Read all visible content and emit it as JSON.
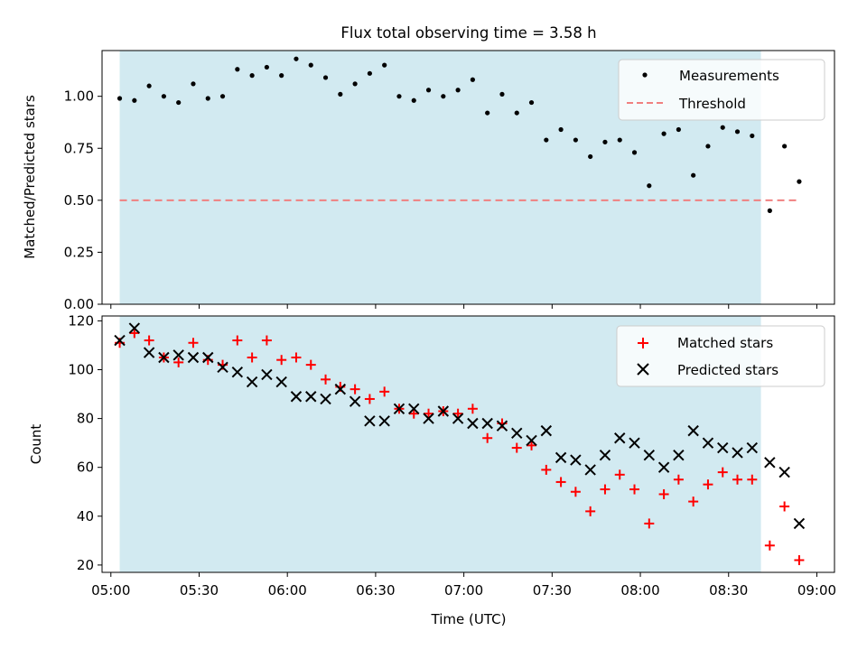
{
  "chart_data": [
    {
      "type": "scatter",
      "title": "Flux total observing time = 3.58 h",
      "xlabel": "",
      "ylabel": "Matched/Predicted stars",
      "xlim": [
        "04:57",
        "09:06"
      ],
      "ylim": [
        0,
        1.22
      ],
      "yticks": [
        0.0,
        0.25,
        0.5,
        0.75,
        1.0
      ],
      "ytick_labels": [
        "0.00",
        "0.25",
        "0.50",
        "0.75",
        "1.00"
      ],
      "grid": false,
      "legend_position": "upper right",
      "shaded_interval": [
        "05:03",
        "08:41"
      ],
      "colors": {
        "measurements": "#000000",
        "threshold": "#f08080",
        "shade": "#add8e6"
      },
      "series": [
        {
          "name": "Measurements",
          "marker": "dot",
          "x": [
            "05:03",
            "05:08",
            "05:13",
            "05:18",
            "05:23",
            "05:28",
            "05:33",
            "05:38",
            "05:43",
            "05:48",
            "05:53",
            "05:58",
            "06:03",
            "06:08",
            "06:13",
            "06:18",
            "06:23",
            "06:28",
            "06:33",
            "06:38",
            "06:43",
            "06:48",
            "06:53",
            "06:58",
            "07:03",
            "07:08",
            "07:13",
            "07:18",
            "07:23",
            "07:28",
            "07:33",
            "07:38",
            "07:43",
            "07:48",
            "07:53",
            "07:58",
            "08:03",
            "08:08",
            "08:13",
            "08:18",
            "08:23",
            "08:28",
            "08:33",
            "08:38",
            "08:44",
            "08:49",
            "08:54"
          ],
          "y": [
            0.99,
            0.98,
            1.05,
            1.0,
            0.97,
            1.06,
            0.99,
            1.0,
            1.13,
            1.1,
            1.14,
            1.1,
            1.18,
            1.15,
            1.09,
            1.01,
            1.06,
            1.11,
            1.15,
            1.0,
            0.98,
            1.03,
            1.0,
            1.03,
            1.08,
            0.92,
            1.01,
            0.92,
            0.97,
            0.79,
            0.84,
            0.79,
            0.71,
            0.78,
            0.79,
            0.73,
            0.57,
            0.82,
            0.84,
            0.62,
            0.76,
            0.85,
            0.83,
            0.81,
            0.45,
            0.76,
            0.59
          ]
        },
        {
          "name": "Threshold",
          "marker": "dashed-line",
          "x": [
            "05:03",
            "08:54"
          ],
          "y": [
            0.5,
            0.5
          ]
        }
      ]
    },
    {
      "type": "scatter",
      "title": "",
      "xlabel": "Time (UTC)",
      "ylabel": "Count",
      "xlim": [
        "04:57",
        "09:06"
      ],
      "ylim": [
        17,
        122
      ],
      "yticks": [
        20,
        40,
        60,
        80,
        100,
        120
      ],
      "ytick_labels": [
        "20",
        "40",
        "60",
        "80",
        "100",
        "120"
      ],
      "xticks": [
        "05:00",
        "05:30",
        "06:00",
        "06:30",
        "07:00",
        "07:30",
        "08:00",
        "08:30",
        "09:00"
      ],
      "xtick_labels": [
        "05:00",
        "05:30",
        "06:00",
        "06:30",
        "07:00",
        "07:30",
        "08:00",
        "08:30",
        "09:00"
      ],
      "grid": false,
      "legend_position": "upper right",
      "shaded_interval": [
        "05:03",
        "08:41"
      ],
      "colors": {
        "matched": "#ff0000",
        "predicted": "#000000",
        "shade": "#add8e6"
      },
      "series": [
        {
          "name": "Matched stars",
          "marker": "plus",
          "x": [
            "05:03",
            "05:08",
            "05:13",
            "05:18",
            "05:23",
            "05:28",
            "05:33",
            "05:38",
            "05:43",
            "05:48",
            "05:53",
            "05:58",
            "06:03",
            "06:08",
            "06:13",
            "06:18",
            "06:23",
            "06:28",
            "06:33",
            "06:38",
            "06:43",
            "06:48",
            "06:53",
            "06:58",
            "07:03",
            "07:08",
            "07:13",
            "07:18",
            "07:23",
            "07:28",
            "07:33",
            "07:38",
            "07:43",
            "07:48",
            "07:53",
            "07:58",
            "08:03",
            "08:08",
            "08:13",
            "08:18",
            "08:23",
            "08:28",
            "08:33",
            "08:38",
            "08:44",
            "08:49",
            "08:54"
          ],
          "y": [
            111,
            115,
            112,
            105,
            103,
            111,
            104,
            102,
            112,
            105,
            112,
            104,
            105,
            102,
            96,
            93,
            92,
            88,
            91,
            84,
            82,
            82,
            83,
            82,
            84,
            72,
            78,
            68,
            69,
            59,
            54,
            50,
            42,
            51,
            57,
            51,
            37,
            49,
            55,
            46,
            53,
            58,
            55,
            55,
            28,
            44,
            22
          ]
        },
        {
          "name": "Predicted stars",
          "marker": "x",
          "x": [
            "05:03",
            "05:08",
            "05:13",
            "05:18",
            "05:23",
            "05:28",
            "05:33",
            "05:38",
            "05:43",
            "05:48",
            "05:53",
            "05:58",
            "06:03",
            "06:08",
            "06:13",
            "06:18",
            "06:23",
            "06:28",
            "06:33",
            "06:38",
            "06:43",
            "06:48",
            "06:53",
            "06:58",
            "07:03",
            "07:08",
            "07:13",
            "07:18",
            "07:23",
            "07:28",
            "07:33",
            "07:38",
            "07:43",
            "07:48",
            "07:53",
            "07:58",
            "08:03",
            "08:08",
            "08:13",
            "08:18",
            "08:23",
            "08:28",
            "08:33",
            "08:38",
            "08:44",
            "08:49",
            "08:54"
          ],
          "y": [
            112,
            117,
            107,
            105,
            106,
            105,
            105,
            101,
            99,
            95,
            98,
            95,
            89,
            89,
            88,
            92,
            87,
            79,
            79,
            84,
            84,
            80,
            83,
            80,
            78,
            78,
            77,
            74,
            71,
            75,
            64,
            63,
            59,
            65,
            72,
            70,
            65,
            60,
            65,
            75,
            70,
            68,
            66,
            68,
            62,
            58,
            37
          ]
        }
      ]
    }
  ]
}
